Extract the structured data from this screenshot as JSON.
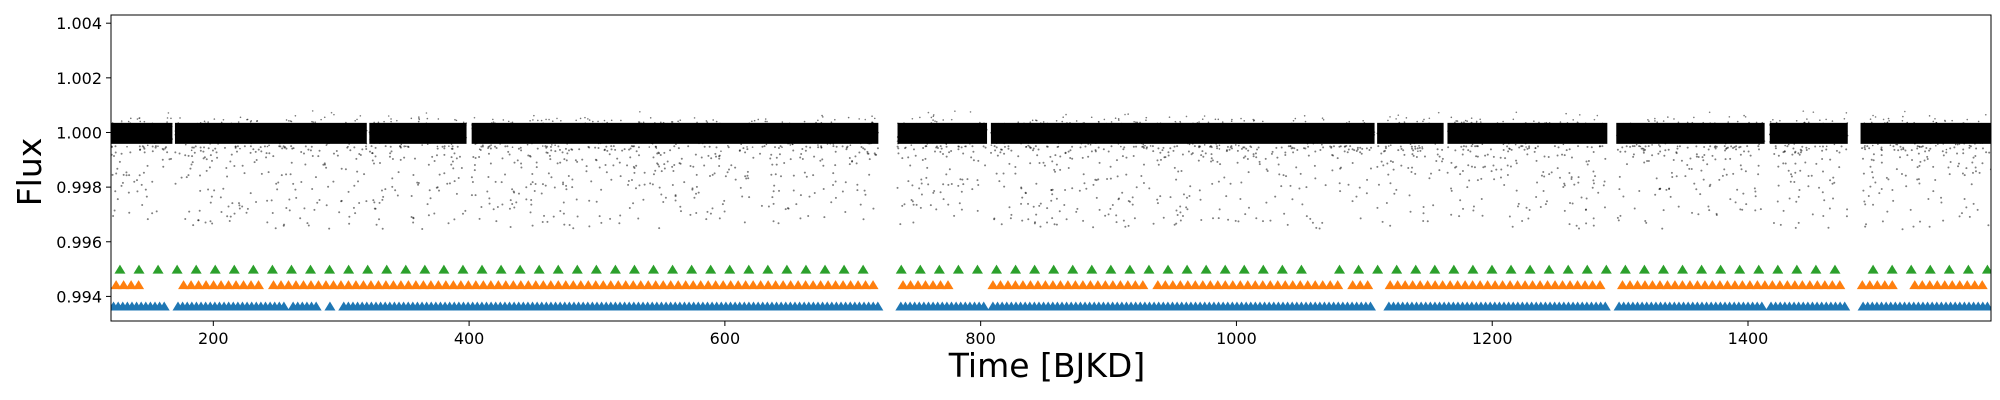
{
  "chart_data": {
    "type": "scatter",
    "title": "",
    "xlabel": "Time [BJKD]",
    "ylabel": "Flux",
    "xlim": [
      120,
      1590
    ],
    "ylim": [
      0.9931,
      1.0043
    ],
    "xticks": [
      200,
      400,
      600,
      800,
      1000,
      1200,
      1400
    ],
    "xtick_labels": [
      "200",
      "400",
      "600",
      "800",
      "1000",
      "1200",
      "1400"
    ],
    "yticks": [
      0.994,
      0.996,
      0.998,
      1.0,
      1.002,
      1.004
    ],
    "ytick_labels": [
      "0.994",
      "0.996",
      "0.998",
      "1.000",
      "1.002",
      "1.004"
    ],
    "grid": false,
    "legend": "none",
    "colors": {
      "flux": "#000000",
      "transits_a": "#2ca02c",
      "transits_b": "#ff7f0e",
      "transits_c": "#1f77b4"
    },
    "series": [
      {
        "kind": "flux_band",
        "baseline": 1.0,
        "scatter": 0.00032,
        "dip_min": 0.9966,
        "segments": [
          [
            120,
            168
          ],
          [
            170,
            320
          ],
          [
            322,
            398
          ],
          [
            402,
            720
          ],
          [
            735,
            805
          ],
          [
            808,
            1108
          ],
          [
            1110,
            1162
          ],
          [
            1165,
            1290
          ],
          [
            1297,
            1413
          ],
          [
            1417,
            1478
          ],
          [
            1488,
            1590
          ]
        ]
      },
      {
        "kind": "transit_markers",
        "color_key": "transits_a",
        "y": 0.995,
        "start": 127,
        "period": 14.9,
        "gaps": [
          [
            720,
            735
          ],
          [
            1058,
            1072
          ],
          [
            1478,
            1488
          ]
        ]
      },
      {
        "kind": "transit_markers",
        "color_key": "transits_b",
        "y": 0.99443,
        "start": 124,
        "period": 5.86,
        "gaps": [
          [
            147,
            173
          ],
          [
            237,
            243
          ],
          [
            720,
            735
          ],
          [
            780,
            808
          ],
          [
            928,
            937
          ],
          [
            1085,
            1090
          ],
          [
            1106,
            1118
          ],
          [
            1290,
            1297
          ],
          [
            1473,
            1488
          ],
          [
            1514,
            1526
          ]
        ]
      },
      {
        "kind": "transit_markers",
        "color_key": "transits_c",
        "y": 0.99365,
        "start": 122,
        "period": 3.6,
        "gaps": [
          [
            163,
            171
          ],
          [
            256,
            262
          ],
          [
            282,
            288
          ],
          [
            293,
            299
          ],
          [
            720,
            735
          ],
          [
            805,
            808
          ],
          [
            1108,
            1118
          ],
          [
            1290,
            1297
          ],
          [
            1413,
            1417
          ],
          [
            1478,
            1488
          ]
        ]
      }
    ]
  }
}
